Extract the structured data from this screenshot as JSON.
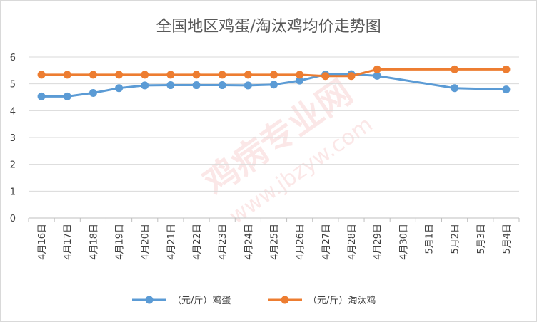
{
  "chart_data": {
    "type": "line",
    "title": "全国地区鸡蛋/淘汰鸡均价走势图",
    "categories": [
      "4月16日",
      "4月17日",
      "4月18日",
      "4月19日",
      "4月20日",
      "4月21日",
      "4月22日",
      "4月23日",
      "4月24日",
      "4月25日",
      "4月26日",
      "4月27日",
      "4月28日",
      "4月29日",
      "4月30日",
      "5月1日",
      "5月2日",
      "5月3日",
      "5月4日"
    ],
    "ylim": [
      0,
      6
    ],
    "yticks": [
      0,
      1,
      2,
      3,
      4,
      5,
      6
    ],
    "grid": true,
    "legend_position": "bottom",
    "series": [
      {
        "name": "（元/斤）鸡蛋",
        "color": "#5b9bd5",
        "values": [
          4.53,
          4.53,
          4.66,
          4.84,
          4.94,
          4.95,
          4.95,
          4.95,
          4.94,
          4.97,
          5.12,
          5.35,
          5.36,
          5.3,
          null,
          null,
          4.84,
          null,
          4.79
        ]
      },
      {
        "name": "（元/斤）淘汰鸡",
        "color": "#ed7d31",
        "values": [
          5.34,
          5.34,
          5.34,
          5.34,
          5.34,
          5.34,
          5.34,
          5.34,
          5.34,
          5.34,
          5.34,
          5.29,
          5.29,
          5.54,
          null,
          null,
          5.54,
          null,
          5.54
        ]
      }
    ]
  },
  "watermark": {
    "brand": "鸡病专业网",
    "url": "www.jbzyw.com"
  }
}
